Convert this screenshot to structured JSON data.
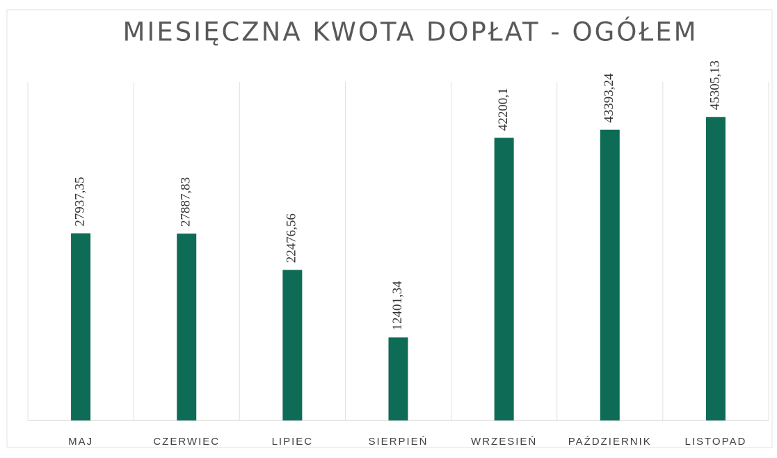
{
  "chart_data": {
    "type": "bar",
    "title": "MIESIĘCZNA KWOTA DOPŁAT - OGÓŁEM",
    "categories": [
      "MAJ",
      "CZERWIEC",
      "LIPIEC",
      "SIERPIEŃ",
      "WRZESIEŃ",
      "PAŹDZIERNIK",
      "LISTOPAD"
    ],
    "values": [
      27937.35,
      27887.83,
      22476.56,
      12401.34,
      42200.1,
      43393.24,
      45305.13
    ],
    "value_labels": [
      "27937,35",
      "27887,83",
      "22476,56",
      "12401,34",
      "42200,1",
      "43393,24",
      "45305,13"
    ],
    "color": "#0e6b55",
    "ylim": [
      0,
      50000
    ]
  }
}
